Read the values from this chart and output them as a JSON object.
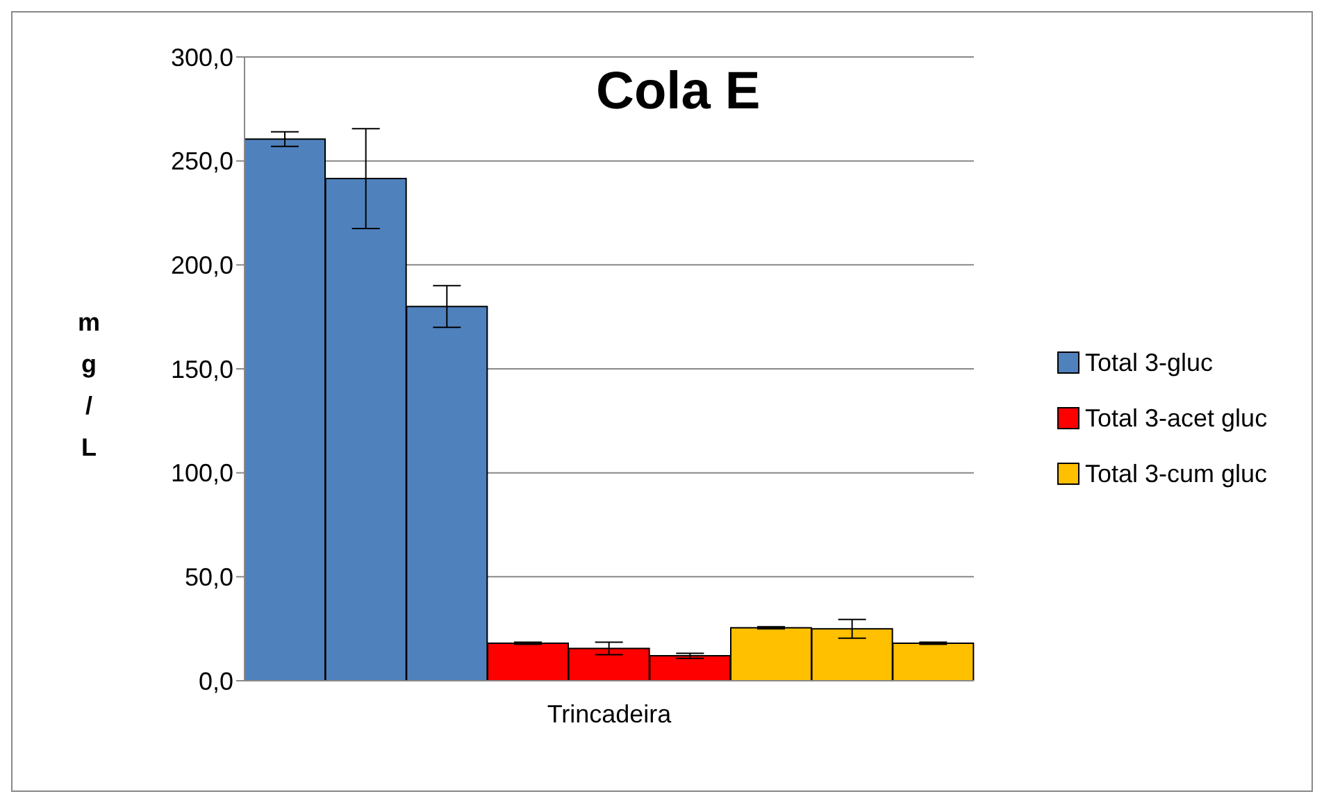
{
  "chart_data": {
    "type": "bar",
    "title": "Cola E",
    "xlabel": "Trincadeira",
    "ylabel": "mg/L",
    "categories": [
      null,
      null,
      null,
      null,
      null,
      null,
      null,
      null,
      null
    ],
    "series": [
      {
        "name": "Total 3-gluc",
        "color": "#4f81bd",
        "values": [
          260.5,
          241.5,
          180,
          null,
          null,
          null,
          null,
          null,
          null
        ],
        "errors": [
          3.5,
          24,
          10,
          null,
          null,
          null,
          null,
          null,
          null
        ]
      },
      {
        "name": "Total 3-acet gluc",
        "color": "#ff0000",
        "values": [
          null,
          null,
          null,
          18,
          15.5,
          12,
          null,
          null,
          null
        ],
        "errors": [
          null,
          null,
          null,
          0.5,
          3,
          1.2,
          null,
          null,
          null
        ]
      },
      {
        "name": "Total 3-cum gluc",
        "color": "#ffc000",
        "values": [
          null,
          null,
          null,
          null,
          null,
          null,
          25.5,
          25,
          18
        ],
        "errors": [
          null,
          null,
          null,
          null,
          null,
          null,
          0.5,
          4.5,
          0.5
        ]
      }
    ],
    "ylim": [
      0,
      300
    ],
    "yticks": [
      {
        "value": 0,
        "label": "0,0"
      },
      {
        "value": 50,
        "label": "50,0"
      },
      {
        "value": 100,
        "label": "100,0"
      },
      {
        "value": 150,
        "label": "150,0"
      },
      {
        "value": 200,
        "label": "200,0"
      },
      {
        "value": 250,
        "label": "250,0"
      },
      {
        "value": 300,
        "label": "300,0"
      }
    ],
    "grid": "y",
    "legend": "right"
  }
}
